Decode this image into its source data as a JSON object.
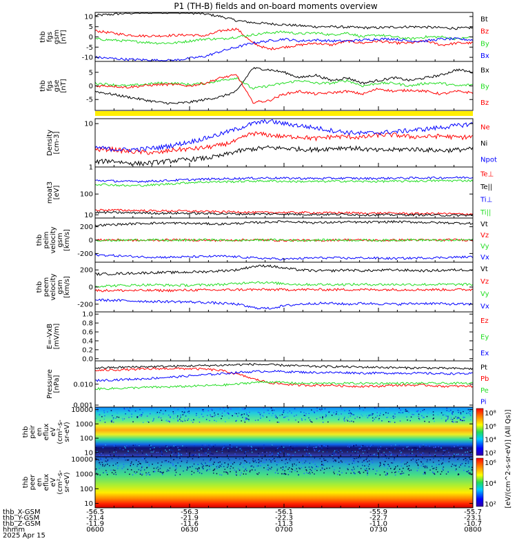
{
  "title": "P1 (TH-B) fields and on-board moments overview",
  "colors": {
    "black": "#000000",
    "red": "#ff0000",
    "green": "#22dd22",
    "blue": "#0000ff",
    "yellow": "#ffee00"
  },
  "chart_data": [
    {
      "type": "line",
      "id": "fgs",
      "ylabel": [
        "thb",
        "fgs",
        "gsm",
        "[nT]"
      ],
      "ylim": [
        -12,
        12
      ],
      "ticks": [
        10,
        5,
        0,
        -5,
        -10
      ],
      "series": [
        {
          "name": "Bt",
          "color": "black",
          "values": [
            10.5,
            11,
            11.6,
            11.8,
            12,
            12,
            11.8,
            11.2,
            10,
            8,
            7,
            6.5,
            6,
            5.5,
            5,
            5,
            4.8,
            4.5,
            4.5,
            4.8,
            5,
            4.8,
            4.5,
            4.2,
            4.5
          ]
        },
        {
          "name": "Bz",
          "color": "red",
          "values": [
            3,
            2,
            1,
            0.5,
            0.5,
            0.8,
            1,
            0.5,
            3,
            4,
            -3,
            -6,
            -5,
            -4,
            -3,
            -4,
            -2,
            -3,
            -2,
            -3,
            -3,
            -2,
            -4,
            -3,
            -3
          ]
        },
        {
          "name": "By",
          "color": "green",
          "values": [
            -1,
            -1.5,
            -2,
            -2.5,
            -3,
            -3,
            -2,
            -1,
            -1,
            0,
            1,
            2,
            2.5,
            1.5,
            2,
            1,
            2,
            0,
            1,
            0,
            -1,
            0,
            0,
            -1,
            0
          ]
        },
        {
          "name": "Bx",
          "color": "blue",
          "values": [
            -10,
            -10.5,
            -11,
            -11.2,
            -11.5,
            -11.5,
            -10.5,
            -9.5,
            -7,
            -5,
            -3,
            -2,
            -1,
            -2,
            -1.5,
            -2,
            -2,
            -1.5,
            -1,
            -1,
            -2,
            -2,
            -1,
            -1,
            -1.5
          ]
        }
      ]
    },
    {
      "type": "line",
      "id": "fgs_mag",
      "ylabel": [
        "thb",
        "fgs",
        "gse",
        "[nT]"
      ],
      "ylim": [
        -9,
        9
      ],
      "ticks": [
        5,
        0,
        -5
      ],
      "series": [
        {
          "name": "Bx",
          "color": "black",
          "values": [
            -2,
            -3,
            -4,
            -5,
            -6,
            -6.5,
            -6,
            -5,
            -4,
            -2,
            6.5,
            6,
            5,
            3,
            4,
            2,
            3,
            1,
            2,
            3,
            2,
            3,
            4,
            6,
            5
          ]
        },
        {
          "name": "By",
          "color": "green",
          "values": [
            1,
            0.5,
            0,
            0.5,
            1,
            1,
            0.5,
            1,
            2,
            3,
            -1,
            0,
            1,
            2,
            1,
            1,
            2,
            0,
            1,
            1,
            0,
            1,
            1,
            0,
            0.5
          ]
        },
        {
          "name": "Bz",
          "color": "red",
          "values": [
            0,
            0,
            -0.5,
            0,
            0.5,
            0.5,
            0,
            1,
            3,
            4,
            -6,
            -5.5,
            -3,
            -2,
            -3,
            -2.5,
            -2,
            -3,
            -1,
            -2,
            -1.5,
            -2,
            -3,
            -2,
            -2.5
          ]
        }
      ]
    },
    {
      "type": "line",
      "id": "density",
      "scale": "log",
      "ylabel": [
        "Density",
        "[cm-3]"
      ],
      "ylim": [
        1,
        13
      ],
      "ticks": [
        10,
        1
      ],
      "series": [
        {
          "name": "Ne",
          "color": "red",
          "values": [
            2.5,
            2.6,
            2.3,
            2.2,
            2.1,
            2.5,
            2.6,
            2.8,
            3.2,
            4,
            6,
            5.5,
            5,
            5,
            4.5,
            5,
            5,
            4.8,
            5.5,
            5.5,
            5,
            5,
            5.2,
            4.8,
            5
          ]
        },
        {
          "name": "Ni",
          "color": "black",
          "values": [
            1.3,
            1.4,
            1.25,
            1.2,
            1.3,
            1.4,
            1.5,
            1.6,
            1.8,
            2.3,
            2.6,
            2.8,
            2.7,
            2.6,
            2.5,
            2.7,
            2.8,
            2.6,
            2.4,
            2.5,
            2.6,
            2.5,
            2.4,
            2.5,
            2.6
          ]
        },
        {
          "name": "Npot",
          "color": "blue",
          "values": [
            2.8,
            2.6,
            2.5,
            2.6,
            2.8,
            3.2,
            3.8,
            4.6,
            5.8,
            7.5,
            10,
            11.5,
            10,
            9,
            8,
            7,
            6.3,
            6,
            6.2,
            6.5,
            7,
            7.5,
            8.2,
            9,
            10
          ]
        }
      ]
    },
    {
      "type": "line",
      "id": "temperature",
      "scale": "log",
      "ylabel": [
        "moat3",
        "[eV]"
      ],
      "ylim": [
        7,
        2000
      ],
      "ticks": [
        100,
        10
      ],
      "series": [
        {
          "name": "Te⊥",
          "color": "red",
          "values": [
            17,
            17,
            16.5,
            16,
            15.5,
            15.5,
            15,
            14.5,
            14,
            14,
            13,
            13,
            13,
            13,
            12.5,
            12.5,
            12.5,
            12,
            12,
            12,
            11.5,
            11.5,
            11.5,
            11,
            11
          ]
        },
        {
          "name": "Te||",
          "color": "black",
          "values": [
            13,
            13,
            12.5,
            12.5,
            12,
            12,
            12,
            11.5,
            11.5,
            11,
            11,
            11,
            11,
            10.5,
            10.5,
            10.5,
            10.5,
            10,
            10,
            10,
            10,
            10,
            9.5,
            9.5,
            9.5
          ]
        },
        {
          "name": "Ti⊥",
          "color": "blue",
          "values": [
            450,
            430,
            400,
            410,
            430,
            460,
            490,
            520,
            540,
            560,
            580,
            600,
            580,
            570,
            560,
            570,
            580,
            560,
            570,
            580,
            590,
            600,
            610,
            620,
            630
          ]
        },
        {
          "name": "Ti||",
          "color": "green",
          "values": [
            300,
            280,
            250,
            260,
            280,
            320,
            360,
            380,
            390,
            400,
            420,
            430,
            410,
            400,
            400,
            410,
            420,
            400,
            410,
            410,
            420,
            430,
            440,
            440,
            450
          ]
        }
      ]
    },
    {
      "type": "line",
      "id": "peim_velocity",
      "ylabel": [
        "thb",
        "peim",
        "velocity",
        "gsm",
        "[km/s]"
      ],
      "ylim": [
        -330,
        330
      ],
      "ticks": [
        200,
        0,
        -200
      ],
      "series": [
        {
          "name": "Vt",
          "color": "black",
          "values": [
            220,
            230,
            240,
            250,
            255,
            255,
            250,
            245,
            240,
            250,
            260,
            270,
            280,
            270,
            260,
            265,
            270,
            265,
            270,
            275,
            270,
            265,
            260,
            255,
            250
          ]
        },
        {
          "name": "Vz",
          "color": "red",
          "values": [
            0,
            5,
            0,
            -5,
            0,
            5,
            0,
            0,
            -5,
            0,
            5,
            0,
            -5,
            0,
            -10,
            0,
            5,
            0,
            -5,
            0,
            5,
            0,
            0,
            5,
            0
          ]
        },
        {
          "name": "Vy",
          "color": "green",
          "values": [
            0,
            -5,
            0,
            5,
            0,
            -5,
            0,
            5,
            0,
            -5,
            0,
            5,
            0,
            -5,
            0,
            5,
            0,
            0,
            -5,
            0,
            5,
            0,
            -5,
            0,
            5
          ]
        },
        {
          "name": "Vx",
          "color": "blue",
          "values": [
            -220,
            -230,
            -240,
            -250,
            -255,
            -255,
            -250,
            -245,
            -240,
            -250,
            -265,
            -275,
            -285,
            -275,
            -265,
            -265,
            -270,
            -265,
            -270,
            -275,
            -270,
            -265,
            -260,
            -255,
            -250
          ]
        }
      ]
    },
    {
      "type": "line",
      "id": "peem_velocity",
      "ylabel": [
        "thb",
        "peem",
        "velocity",
        "gsm",
        "[km/s]"
      ],
      "ylim": [
        -290,
        290
      ],
      "ticks": [
        200,
        0,
        -200
      ],
      "series": [
        {
          "name": "Vt",
          "color": "black",
          "values": [
            150,
            155,
            160,
            165,
            170,
            170,
            175,
            180,
            190,
            200,
            240,
            250,
            220,
            200,
            190,
            190,
            200,
            190,
            195,
            200,
            195,
            190,
            195,
            200,
            200
          ]
        },
        {
          "name": "Vz",
          "color": "red",
          "values": [
            -40,
            -40,
            -40,
            -40,
            -40,
            -40,
            -35,
            -35,
            -35,
            -30,
            -30,
            -30,
            -30,
            -30,
            -30,
            -30,
            -30,
            -30,
            -30,
            -30,
            -30,
            -30,
            -30,
            -30,
            -30
          ]
        },
        {
          "name": "Vy",
          "color": "green",
          "values": [
            10,
            15,
            20,
            25,
            25,
            20,
            20,
            25,
            30,
            40,
            60,
            50,
            40,
            30,
            30,
            30,
            30,
            30,
            30,
            30,
            30,
            30,
            30,
            30,
            30
          ]
        },
        {
          "name": "Vx",
          "color": "blue",
          "values": [
            -150,
            -155,
            -160,
            -165,
            -170,
            -170,
            -175,
            -180,
            -190,
            -200,
            -240,
            -250,
            -220,
            -200,
            -190,
            -190,
            -200,
            -190,
            -195,
            -200,
            -195,
            -190,
            -195,
            -200,
            -200
          ]
        }
      ]
    },
    {
      "type": "line",
      "id": "efield",
      "ylabel": [
        "E=-VxB",
        "[mV/m]"
      ],
      "ylim": [
        -0.05,
        1.05
      ],
      "ticks": [
        1.0,
        0.8,
        0.6,
        0.4,
        0.2,
        0.0
      ],
      "series": [
        {
          "name": "Ez",
          "color": "red",
          "values": []
        },
        {
          "name": "Ey",
          "color": "green",
          "values": []
        },
        {
          "name": "Ex",
          "color": "blue",
          "values": []
        }
      ]
    },
    {
      "type": "line",
      "id": "pressure",
      "scale": "log",
      "ylabel": [
        "Pressure",
        "[nPa]"
      ],
      "ylim": [
        0.0008,
        0.13
      ],
      "ticks": [
        0.01,
        0.001
      ],
      "series": [
        {
          "name": "Pt",
          "color": "black",
          "values": [
            0.06,
            0.062,
            0.065,
            0.068,
            0.07,
            0.072,
            0.075,
            0.078,
            0.08,
            0.085,
            0.09,
            0.085,
            0.08,
            0.075,
            0.07,
            0.07,
            0.068,
            0.065,
            0.065,
            0.062,
            0.06,
            0.06,
            0.058,
            0.056,
            0.055
          ]
        },
        {
          "name": "Pb",
          "color": "red",
          "values": [
            0.045,
            0.048,
            0.05,
            0.052,
            0.055,
            0.056,
            0.055,
            0.052,
            0.045,
            0.03,
            0.018,
            0.012,
            0.01,
            0.009,
            0.009,
            0.009,
            0.008,
            0.008,
            0.008,
            0.009,
            0.009,
            0.009,
            0.008,
            0.008,
            0.008
          ]
        },
        {
          "name": "Pe",
          "color": "green",
          "values": [
            0.006,
            0.0062,
            0.0065,
            0.007,
            0.0072,
            0.0075,
            0.008,
            0.0085,
            0.009,
            0.01,
            0.012,
            0.013,
            0.012,
            0.011,
            0.011,
            0.011,
            0.011,
            0.011,
            0.011,
            0.011,
            0.011,
            0.011,
            0.011,
            0.011,
            0.011
          ]
        },
        {
          "name": "Pi",
          "color": "blue",
          "values": [
            0.015,
            0.016,
            0.017,
            0.018,
            0.02,
            0.022,
            0.025,
            0.028,
            0.032,
            0.036,
            0.04,
            0.042,
            0.04,
            0.038,
            0.036,
            0.036,
            0.036,
            0.034,
            0.034,
            0.034,
            0.034,
            0.033,
            0.032,
            0.032,
            0.032
          ]
        }
      ]
    },
    {
      "type": "heatmap",
      "id": "peir",
      "ylabel": [
        "thb",
        "peir",
        "en",
        "eflux",
        "eV",
        "(cm²-s-",
        "sr-eV)"
      ],
      "ticks": [
        10000,
        1000,
        100,
        10
      ]
    },
    {
      "type": "heatmap",
      "id": "peer",
      "ylabel": [
        "thb",
        "peer",
        "en",
        "eflux",
        "eV",
        "(cm²-s-",
        "sr-eV)"
      ],
      "ticks": [
        10000,
        1000,
        100,
        10
      ]
    }
  ],
  "colorbar": {
    "ticks1": [
      "10⁸",
      "10⁶",
      "10⁴",
      "10²"
    ],
    "ticks2": [
      "10⁶",
      "10⁴",
      "10²"
    ],
    "label": "[eV/(cm^2-s-sr-eV)] (All Qs)]"
  },
  "xaxis": {
    "rows": [
      {
        "label": "thb_X-GSM",
        "values": [
          "-56.5",
          "-56.3",
          "-56.1",
          "-55.9",
          "-55.7"
        ]
      },
      {
        "label": "thb_Y-GSM",
        "values": [
          "-21.4",
          "-21.9",
          "-22.3",
          "-22.7",
          "-23.1"
        ]
      },
      {
        "label": "thb_Z-GSM",
        "values": [
          "-11.9",
          "-11.6",
          "-11.3",
          "-11.0",
          "-10.7"
        ]
      },
      {
        "label": "hhmm",
        "values": [
          "0600",
          "0630",
          "0700",
          "0730",
          "0800"
        ]
      }
    ],
    "date": "2025 Apr 15"
  }
}
